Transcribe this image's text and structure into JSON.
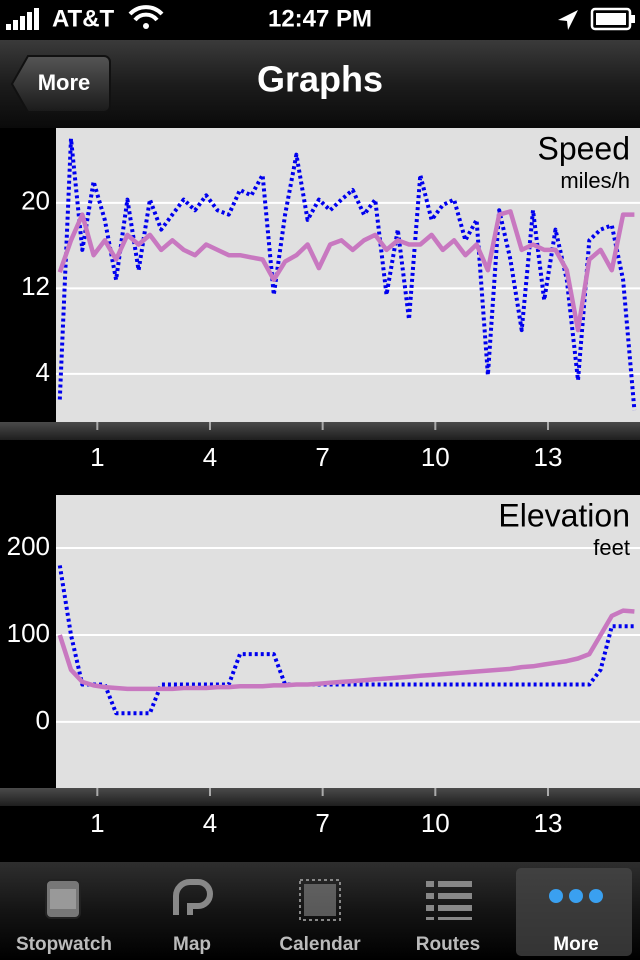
{
  "status_bar": {
    "carrier": "AT&T",
    "time": "12:47 PM"
  },
  "nav_bar": {
    "back": "More",
    "title": "Graphs"
  },
  "chart_data": [
    {
      "type": "line",
      "title": "Speed",
      "subtitle": "miles/h",
      "x": [
        0,
        0.3,
        0.6,
        0.9,
        1.2,
        1.5,
        1.8,
        2.1,
        2.4,
        2.7,
        3,
        3.3,
        3.6,
        3.9,
        4.2,
        4.5,
        4.8,
        5.1,
        5.4,
        5.7,
        6,
        6.3,
        6.6,
        6.9,
        7.2,
        7.5,
        7.8,
        8.1,
        8.4,
        8.7,
        9,
        9.3,
        9.6,
        9.9,
        10.2,
        10.5,
        10.8,
        11.1,
        11.4,
        11.7,
        12,
        12.3,
        12.6,
        12.9,
        13.2,
        13.5,
        13.8,
        14.1,
        14.4,
        14.7,
        15,
        15.3
      ],
      "xlim": [
        -0.1,
        15.45
      ],
      "xticks": [
        1,
        4,
        7,
        10,
        13
      ],
      "ylim": [
        -0.5,
        27
      ],
      "yticks": [
        4,
        12,
        20
      ],
      "grid": true,
      "series": [
        {
          "color": "#0000ee",
          "style": "dotted",
          "values": [
            1.6,
            26,
            15.6,
            22,
            18.4,
            12.8,
            20.3,
            13.7,
            20.3,
            17.5,
            18.9,
            20.3,
            19.3,
            20.7,
            19.3,
            18.9,
            21.2,
            20.7,
            22.6,
            11.4,
            18.9,
            24.5,
            18.4,
            20.3,
            19.3,
            20.3,
            21.2,
            18.9,
            20.3,
            11.4,
            17.5,
            9.1,
            22.6,
            18.4,
            19.8,
            20.3,
            16.5,
            18.4,
            3.9,
            19.3,
            14.7,
            8.1,
            19.3,
            10.9,
            17.5,
            12.8,
            3.4,
            16.5,
            17.5,
            17.9,
            12.8,
            0.6
          ]
        },
        {
          "color": "#c878c0",
          "style": "solid",
          "values": [
            13.5,
            16.5,
            18.9,
            15.1,
            16.5,
            14.7,
            17,
            16.1,
            17,
            15.6,
            16.5,
            15.6,
            15.1,
            16.1,
            15.6,
            15.1,
            15.1,
            14.9,
            14.7,
            12.8,
            14.5,
            15.1,
            16.1,
            13.9,
            16.1,
            16.5,
            15.6,
            16.5,
            17,
            15.6,
            16.5,
            16.1,
            16.1,
            17,
            15.6,
            16.5,
            15.1,
            16.1,
            13.7,
            18.9,
            19.2,
            15.6,
            16.1,
            15.6,
            15.6,
            13.7,
            8.1,
            14.7,
            15.6,
            13.7,
            18.9,
            18.9
          ]
        }
      ]
    },
    {
      "type": "line",
      "title": "Elevation",
      "subtitle": "feet",
      "x": [
        0,
        0.3,
        0.6,
        0.9,
        1.2,
        1.5,
        1.8,
        2.1,
        2.4,
        2.7,
        3,
        3.3,
        3.6,
        3.9,
        4.2,
        4.5,
        4.8,
        5.1,
        5.4,
        5.7,
        6,
        6.3,
        6.6,
        6.9,
        7.2,
        7.5,
        7.8,
        8.1,
        8.4,
        8.7,
        9,
        9.3,
        9.6,
        9.9,
        10.2,
        10.5,
        10.8,
        11.1,
        11.4,
        11.7,
        12,
        12.3,
        12.6,
        12.9,
        13.2,
        13.5,
        13.8,
        14.1,
        14.4,
        14.7,
        15,
        15.3
      ],
      "xlim": [
        -0.1,
        15.45
      ],
      "xticks": [
        1,
        4,
        7,
        10,
        13
      ],
      "ylim": [
        -76,
        261
      ],
      "yticks": [
        0,
        100,
        200
      ],
      "grid": true,
      "series": [
        {
          "color": "#0000ee",
          "style": "dotted",
          "values": [
            180,
            100,
            43,
            43,
            43,
            10,
            10,
            10,
            10,
            43,
            43,
            43,
            43,
            43,
            43,
            43,
            78,
            78,
            78,
            78,
            43,
            43,
            43,
            43,
            43,
            43,
            43,
            43,
            43,
            43,
            43,
            43,
            43,
            43,
            43,
            43,
            43,
            43,
            43,
            43,
            43,
            43,
            43,
            43,
            43,
            43,
            43,
            43,
            60,
            110,
            110,
            110
          ]
        },
        {
          "color": "#c878c0",
          "style": "solid",
          "values": [
            100,
            60,
            46,
            42,
            40,
            39,
            38,
            38,
            38,
            38,
            38,
            39,
            39,
            39,
            40,
            40,
            41,
            41,
            41,
            42,
            42,
            43,
            43,
            44,
            45,
            46,
            47,
            48,
            49,
            50,
            51,
            52,
            53,
            54,
            55,
            56,
            57,
            58,
            59,
            60,
            61,
            63,
            64,
            66,
            68,
            70,
            73,
            78,
            100,
            122,
            128,
            127
          ]
        }
      ]
    }
  ],
  "tab_bar": {
    "items": [
      "Stopwatch",
      "Map",
      "Calendar",
      "Routes",
      "More"
    ],
    "selected": 4
  }
}
